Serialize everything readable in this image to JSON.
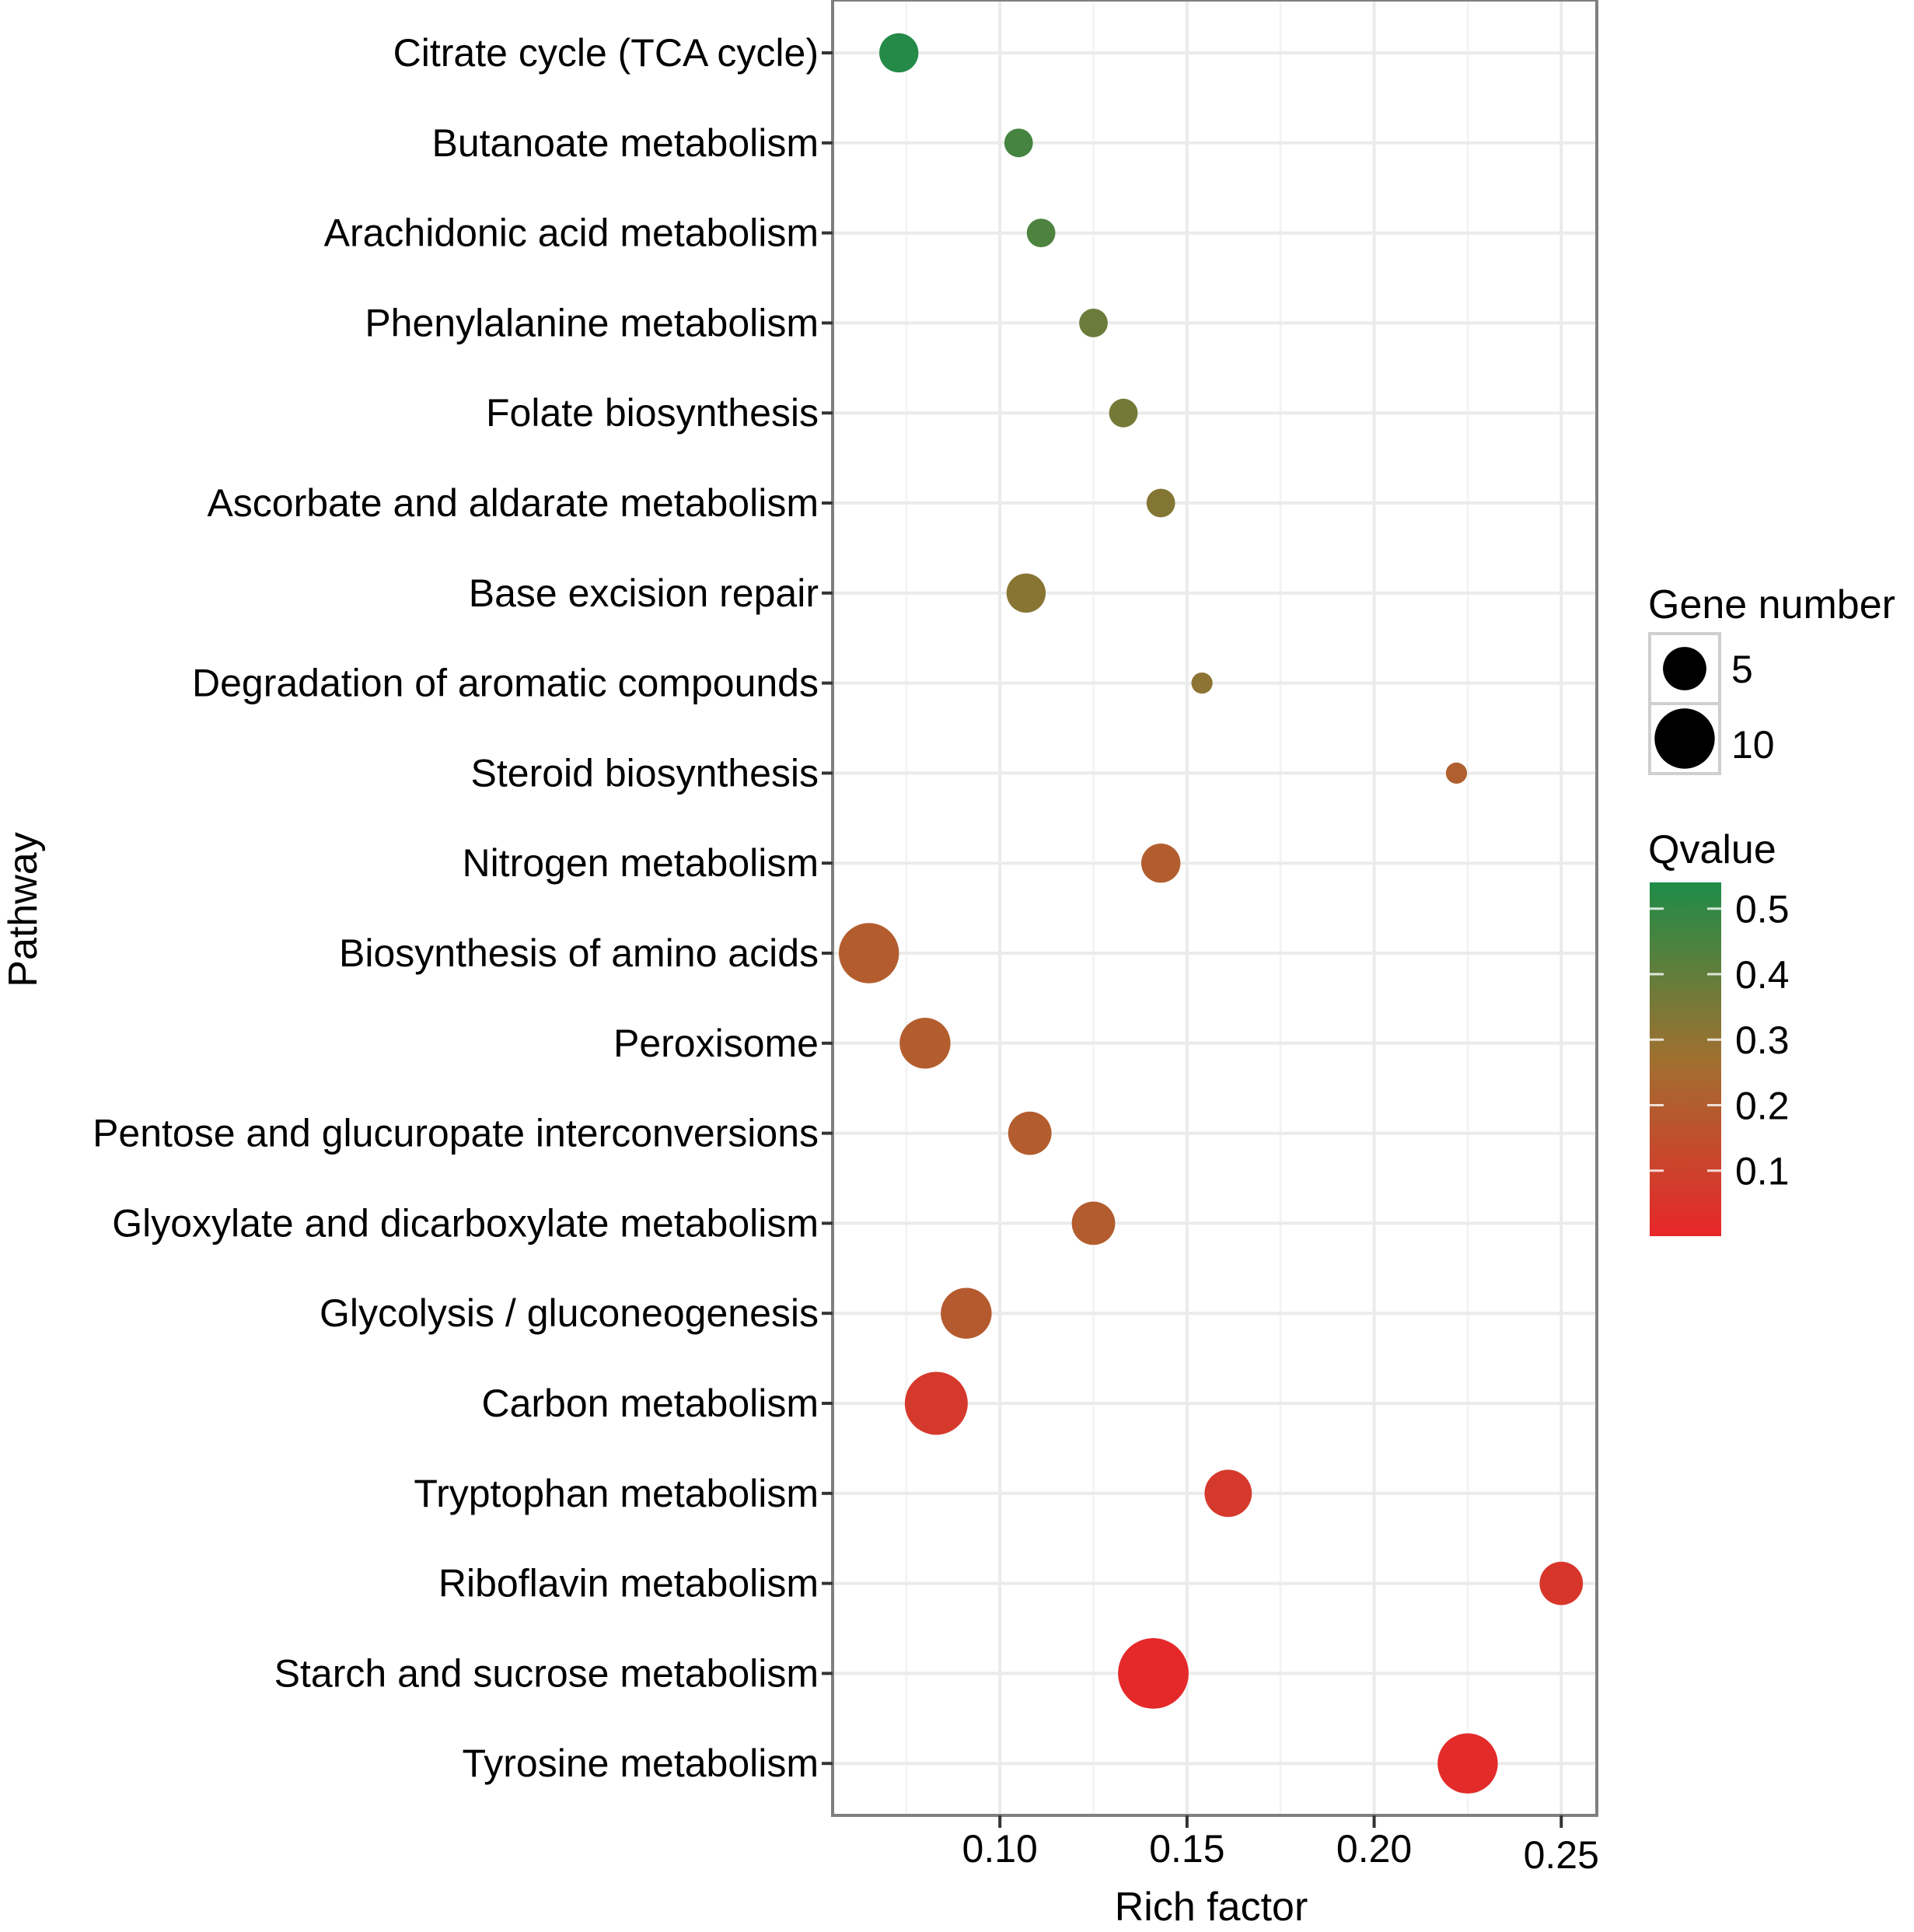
{
  "chart_data": {
    "type": "scatter",
    "title": "",
    "xlabel": "Rich factor",
    "ylabel": "Pathway",
    "xlim": [
      0.0553,
      0.2595
    ],
    "xticks": [
      0.1,
      0.15,
      0.2,
      0.25
    ],
    "xtick_labels": [
      "0.10",
      "0.15",
      "0.20",
      "0.25"
    ],
    "grid": true,
    "categories": [
      "Citrate cycle (TCA cycle)",
      "Butanoate metabolism",
      "Arachidonic acid metabolism",
      "Phenylalanine metabolism",
      "Folate biosynthesis",
      "Ascorbate and aldarate metabolism",
      "Base excision repair",
      "Degradation of aromatic compounds",
      "Steroid biosynthesis",
      "Nitrogen metabolism",
      "Biosynthesis of amino acids",
      "Peroxisome",
      "Pentose and glucuropate interconversions",
      "Glyoxylate and dicarboxylate metabolism",
      "Glycolysis / gluconeogenesis",
      "Carbon metabolism",
      "Tryptophan metabolism",
      "Riboflavin metabolism",
      "Starch and sucrose metabolism",
      "Tyrosine metabolism"
    ],
    "points": [
      {
        "pathway": "Citrate cycle (TCA cycle)",
        "rich_factor": 0.073,
        "gene_number": 4,
        "qvalue": 0.53
      },
      {
        "pathway": "Butanoate metabolism",
        "rich_factor": 0.105,
        "gene_number": 2,
        "qvalue": 0.46
      },
      {
        "pathway": "Arachidonic acid metabolism",
        "rich_factor": 0.111,
        "gene_number": 2,
        "qvalue": 0.44
      },
      {
        "pathway": "Phenylalanine metabolism",
        "rich_factor": 0.125,
        "gene_number": 2,
        "qvalue": 0.38
      },
      {
        "pathway": "Folate biosynthesis",
        "rich_factor": 0.133,
        "gene_number": 2,
        "qvalue": 0.36
      },
      {
        "pathway": "Ascorbate and aldarate metabolism",
        "rich_factor": 0.143,
        "gene_number": 2,
        "qvalue": 0.33
      },
      {
        "pathway": "Base excision repair",
        "rich_factor": 0.107,
        "gene_number": 4,
        "qvalue": 0.32
      },
      {
        "pathway": "Degradation of aromatic compounds",
        "rich_factor": 0.154,
        "gene_number": 1,
        "qvalue": 0.31
      },
      {
        "pathway": "Steroid biosynthesis",
        "rich_factor": 0.222,
        "gene_number": 1,
        "qvalue": 0.21
      },
      {
        "pathway": "Nitrogen metabolism",
        "rich_factor": 0.143,
        "gene_number": 4,
        "qvalue": 0.2
      },
      {
        "pathway": "Biosynthesis of amino acids",
        "rich_factor": 0.065,
        "gene_number": 10,
        "qvalue": 0.2
      },
      {
        "pathway": "Peroxisome",
        "rich_factor": 0.08,
        "gene_number": 7,
        "qvalue": 0.2
      },
      {
        "pathway": "Pentose and glucuropate interconversions",
        "rich_factor": 0.108,
        "gene_number": 5,
        "qvalue": 0.2
      },
      {
        "pathway": "Glyoxylate and dicarboxylate metabolism",
        "rich_factor": 0.125,
        "gene_number": 5,
        "qvalue": 0.2
      },
      {
        "pathway": "Glycolysis / gluconeogenesis",
        "rich_factor": 0.091,
        "gene_number": 7,
        "qvalue": 0.19
      },
      {
        "pathway": "Carbon metabolism",
        "rich_factor": 0.083,
        "gene_number": 11,
        "qvalue": 0.07
      },
      {
        "pathway": "Tryptophan metabolism",
        "rich_factor": 0.161,
        "gene_number": 6,
        "qvalue": 0.07
      },
      {
        "pathway": "Riboflavin metabolism",
        "rich_factor": 0.25,
        "gene_number": 5,
        "qvalue": 0.06
      },
      {
        "pathway": "Starch and sucrose metabolism",
        "rich_factor": 0.141,
        "gene_number": 14,
        "qvalue": 0.01
      },
      {
        "pathway": "Tyrosine metabolism",
        "rich_factor": 0.225,
        "gene_number": 10,
        "qvalue": 0.02
      }
    ],
    "size_legend": {
      "title": "Gene number",
      "entries": [
        {
          "label": "5",
          "value": 5
        },
        {
          "label": "10",
          "value": 10
        }
      ]
    },
    "color_legend": {
      "title": "Qvalue",
      "range": [
        0.0,
        0.54
      ],
      "ticks": [
        0.5,
        0.4,
        0.3,
        0.2,
        0.1
      ],
      "tick_labels": [
        "0.5",
        "0.4",
        "0.3",
        "0.2",
        "0.1"
      ],
      "low_color": "#E8262A",
      "mid_color": "#A07030",
      "high_color": "#1E8C48"
    }
  }
}
